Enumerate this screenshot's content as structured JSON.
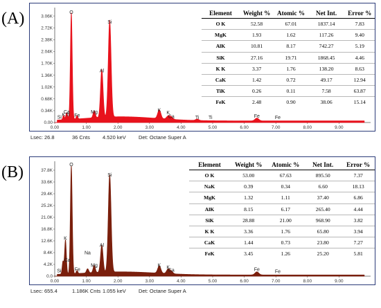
{
  "chart_data": [
    {
      "type": "area",
      "panel_label": "(A)",
      "color": "#e8121c",
      "xlim": [
        0,
        10
      ],
      "ylim": [
        0,
        3.3
      ],
      "x_ticks": [
        "0.00",
        "1.00",
        "2.00",
        "3.00",
        "4.00",
        "5.00",
        "6.00",
        "7.00",
        "8.00",
        "9.00"
      ],
      "y_ticks": [
        "0.00",
        "0.34K",
        "0.68K",
        "1.02K",
        "1.36K",
        "1.70K",
        "2.04K",
        "2.38K",
        "2.72K",
        "3.06K"
      ],
      "peaks": [
        {
          "energy": 0.28,
          "height": 0.12,
          "width": 0.025
        },
        {
          "energy": 0.38,
          "height": 0.2,
          "width": 0.03
        },
        {
          "energy": 0.525,
          "height": 3.06,
          "width": 0.03
        },
        {
          "energy": 0.705,
          "height": 0.1,
          "width": 0.025
        },
        {
          "energy": 1.25,
          "height": 0.2,
          "width": 0.035
        },
        {
          "energy": 1.49,
          "height": 1.38,
          "width": 0.04
        },
        {
          "energy": 1.74,
          "height": 2.78,
          "width": 0.045
        },
        {
          "energy": 3.31,
          "height": 0.25,
          "width": 0.05
        },
        {
          "energy": 3.59,
          "height": 0.09,
          "width": 0.05
        },
        {
          "energy": 3.69,
          "height": 0.07,
          "width": 0.05
        },
        {
          "energy": 4.51,
          "height": 0.04,
          "width": 0.05
        },
        {
          "energy": 6.4,
          "height": 0.08,
          "width": 0.06
        }
      ],
      "peak_labels": [
        {
          "text": "O",
          "energy": 0.525,
          "height": 3.06
        },
        {
          "text": "Si",
          "energy": 1.74,
          "height": 2.78
        },
        {
          "text": "Al",
          "energy": 1.49,
          "height": 1.38
        },
        {
          "text": "Mg",
          "energy": 1.25,
          "height": 0.2
        },
        {
          "text": "Ca",
          "energy": 0.38,
          "height": 0.2
        },
        {
          "text": "Ti",
          "energy": 0.41,
          "height": 0.12
        },
        {
          "text": "K",
          "energy": 0.28,
          "height": 0.12
        },
        {
          "text": "Si",
          "energy": 0.15,
          "height": 0.05
        },
        {
          "text": "Fe",
          "energy": 0.71,
          "height": 0.1
        },
        {
          "text": "K",
          "energy": 3.31,
          "height": 0.25
        },
        {
          "text": "K",
          "energy": 3.59,
          "height": 0.18
        },
        {
          "text": "Ca",
          "energy": 3.69,
          "height": 0.07
        },
        {
          "text": "Ti",
          "energy": 4.51,
          "height": 0.04
        },
        {
          "text": "Ti",
          "energy": 4.93,
          "height": 0.04
        },
        {
          "text": "Fe",
          "energy": 6.4,
          "height": 0.08
        },
        {
          "text": "Fe",
          "energy": 7.06,
          "height": 0.04
        }
      ],
      "footer": {
        "lsec": "Lsec: 26.8",
        "cnts": "36 Cnts",
        "kev": "4.520 keV",
        "det": "Det: Octane Super A"
      },
      "table": {
        "headers": [
          "Element",
          "Weight %",
          "Atomic %",
          "Net Int.",
          "Error %"
        ],
        "rows": [
          [
            "O K",
            "52.58",
            "67.01",
            "1837.14",
            "7.83"
          ],
          [
            "MgK",
            "1.93",
            "1.62",
            "117.26",
            "9.40"
          ],
          [
            "AlK",
            "10.81",
            "8.17",
            "742.27",
            "5.19"
          ],
          [
            "SiK",
            "27.16",
            "19.71",
            "1868.45",
            "4.46"
          ],
          [
            "K K",
            "3.37",
            "1.76",
            "138.20",
            "8.63"
          ],
          [
            "CaK",
            "1.42",
            "0.72",
            "49.17",
            "12.94"
          ],
          [
            "TiK",
            "0.26",
            "0.11",
            "7.58",
            "63.87"
          ],
          [
            "FeK",
            "2.48",
            "0.90",
            "38.06",
            "15.14"
          ]
        ]
      }
    },
    {
      "type": "area",
      "panel_label": "(B)",
      "color": "#7a1f0c",
      "xlim": [
        0,
        10
      ],
      "ylim": [
        0,
        41
      ],
      "x_ticks": [
        "0.00",
        "1.00",
        "2.00",
        "3.00",
        "4.00",
        "5.00",
        "6.00",
        "7.00",
        "8.00",
        "9.00"
      ],
      "y_ticks": [
        "0.0",
        "4.2K",
        "8.4K",
        "12.6K",
        "16.8K",
        "21.0K",
        "25.2K",
        "29.4K",
        "33.6K",
        "37.8K"
      ],
      "peaks": [
        {
          "energy": 0.26,
          "height": 4.5,
          "width": 0.025
        },
        {
          "energy": 0.34,
          "height": 12.2,
          "width": 0.028
        },
        {
          "energy": 0.525,
          "height": 38.5,
          "width": 0.03
        },
        {
          "energy": 0.705,
          "height": 1.1,
          "width": 0.025
        },
        {
          "energy": 1.04,
          "height": 1.5,
          "width": 0.035
        },
        {
          "energy": 1.25,
          "height": 2.6,
          "width": 0.035
        },
        {
          "energy": 1.49,
          "height": 9.8,
          "width": 0.04
        },
        {
          "energy": 1.74,
          "height": 34.8,
          "width": 0.045
        },
        {
          "energy": 3.31,
          "height": 2.6,
          "width": 0.05
        },
        {
          "energy": 3.59,
          "height": 1.6,
          "width": 0.05
        },
        {
          "energy": 3.69,
          "height": 0.9,
          "width": 0.05
        },
        {
          "energy": 6.4,
          "height": 1.1,
          "width": 0.06
        }
      ],
      "peak_labels": [
        {
          "text": "O",
          "energy": 0.525,
          "height": 38.5
        },
        {
          "text": "Si",
          "energy": 1.74,
          "height": 34.8
        },
        {
          "text": "Al",
          "energy": 1.49,
          "height": 9.8
        },
        {
          "text": "K",
          "energy": 0.34,
          "height": 12.2
        },
        {
          "text": "Ca",
          "energy": 0.4,
          "height": 4.5
        },
        {
          "text": "Na",
          "energy": 1.04,
          "height": 7.0
        },
        {
          "text": "Mg",
          "energy": 1.25,
          "height": 2.6
        },
        {
          "text": "Fe",
          "energy": 0.72,
          "height": 1.1
        },
        {
          "text": "Si",
          "energy": 0.14,
          "height": 0.6
        },
        {
          "text": "K",
          "energy": 3.31,
          "height": 2.6
        },
        {
          "text": "K",
          "energy": 3.59,
          "height": 1.8
        },
        {
          "text": "Ca",
          "energy": 3.69,
          "height": 0.9
        },
        {
          "text": "Fe",
          "energy": 6.4,
          "height": 1.1
        },
        {
          "text": "Fe",
          "energy": 7.06,
          "height": 0.4
        }
      ],
      "footer": {
        "lsec": "Lsec: 655.4",
        "cnts": "1.186K Cnts",
        "kev": "1.055 keV",
        "det": "Det: Octane Super A"
      },
      "table": {
        "headers": [
          "Element",
          "Weight %",
          "Atomic %",
          "Net Int.",
          "Error %"
        ],
        "rows": [
          [
            "O K",
            "53.00",
            "67.63",
            "895.50",
            "7.37"
          ],
          [
            "NaK",
            "0.39",
            "0.34",
            "6.60",
            "18.13"
          ],
          [
            "MgK",
            "1.32",
            "1.11",
            "37.40",
            "6.86"
          ],
          [
            "AlK",
            "8.15",
            "6.17",
            "265.40",
            "4.44"
          ],
          [
            "SiK",
            "28.88",
            "21.00",
            "968.90",
            "3.82"
          ],
          [
            "K K",
            "3.36",
            "1.76",
            "65.80",
            "3.94"
          ],
          [
            "CaK",
            "1.44",
            "0.73",
            "23.80",
            "7.27"
          ],
          [
            "FeK",
            "3.45",
            "1.26",
            "25.20",
            "5.81"
          ]
        ]
      }
    }
  ]
}
